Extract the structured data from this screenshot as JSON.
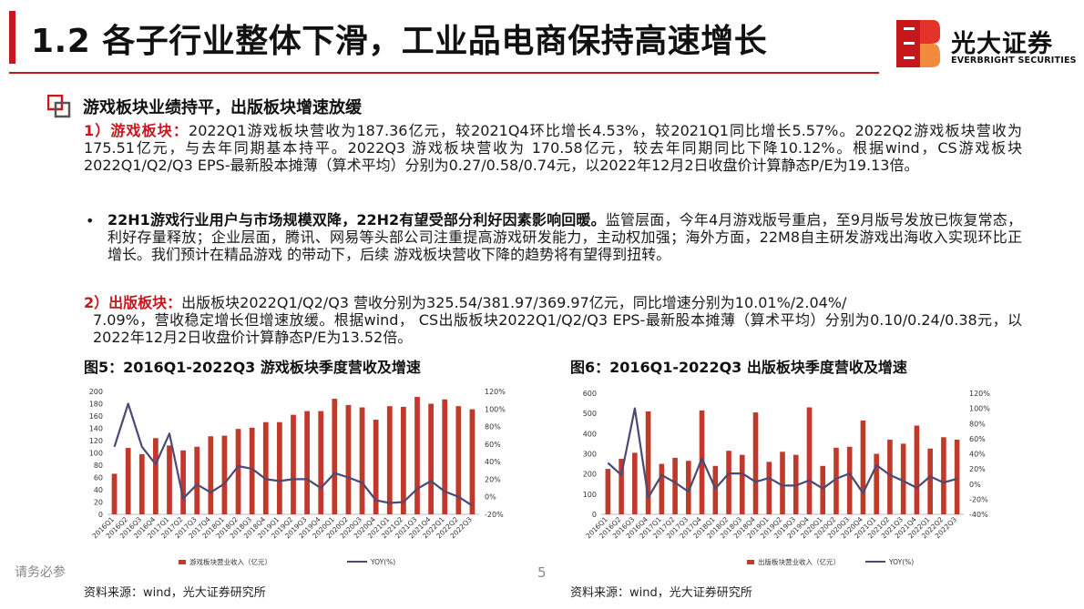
{
  "header": {
    "title": "1.2 各子行业整体下滑，工业品电商保持高速增长",
    "brand_cn": "光大证券",
    "brand_en": "EVERBRIGHT SECURITIES"
  },
  "section": {
    "title": "游戏板块业绩持平，出版板块增速放缓"
  },
  "paragraphs": {
    "p1_lead": "1）游戏板块：",
    "p1_body": "2022Q1游戏板块营收为187.36亿元，较2021Q4环比增长4.53%，较2021Q1同比增长5.57%。2022Q2游戏板块营收为175.51亿元，与去年同期基本持平。2022Q3 游戏板块营收为 170.58亿元，较去年同期同比下降10.12%。根据wind，CS游戏板块2022Q1/Q2/Q3 EPS-最新股本摊薄（算术平均）分别为0.27/0.58/0.74元，以2022年12月2日收盘价计算静态P/E为19.13倍。",
    "bullet_mark": "•",
    "p2_lead": "22H1游戏行业用户与市场规模双降，22H2有望受部分利好因素影响回暖。",
    "p2_body": "监管层面，今年4月游戏版号重启，至9月版号发放已恢复常态，利好存量释放；企业层面，腾讯、网易等头部公司注重提高游戏研发能力，主动权加强；海外方面，22M8自主研发游戏出海收入实现环比正增长。我们预计在精品游戏 的带动下，后续 游戏板块营收下降的趋势将有望得到扭转。",
    "p3_lead": "2）出版板块：",
    "p3_body1": "出版板块2022Q1/Q2/Q3  营收分别为325.54/381.97/369.97亿元，同比增速分别为10.01%/2.04%/",
    "p3_body2": "7.09%，营收稳定增长但增速放缓。根据wind， CS出版板块2022Q1/Q2/Q3 EPS-最新股本摊薄（算术平均）分别为0.10/0.24/0.38元，以2022年12月2日收盘价计算静态P/E为13.52倍。"
  },
  "figures": {
    "fig5_title": "图5：2016Q1-2022Q3 游戏板块季度营收及增速",
    "fig6_title": "图6：2016Q1-2022Q3 出版板块季度营收及增速",
    "source5": "资料来源：wind，光大证券研究所",
    "source6": "资料来源：wind，光大证券研究所"
  },
  "footer": {
    "note": "请务必参",
    "page": "5"
  },
  "colors": {
    "brand_red": "#c8161d",
    "bar_red": "#c0392b",
    "line_navy": "#4a4a75"
  },
  "chart_data": [
    {
      "type": "bar",
      "categories": [
        "2016Q1",
        "2016Q2",
        "2016Q3",
        "2016Q4",
        "2017Q1",
        "2017Q2",
        "2017Q3",
        "2017Q4",
        "2018Q1",
        "2018Q2",
        "2018Q3",
        "2018Q4",
        "2019Q1",
        "2019Q2",
        "2019Q3",
        "2019Q4",
        "2020Q1",
        "2020Q2",
        "2020Q3",
        "2020Q4",
        "2021Q1",
        "2021Q2",
        "2021Q3",
        "2021Q4",
        "2022Q1",
        "2022Q2",
        "2022Q3"
      ],
      "series": [
        {
          "name": "游戏板块营业收入（亿元）",
          "kind": "bar",
          "axis": "left",
          "values": [
            66,
            108,
            98,
            124,
            112,
            104,
            110,
            127,
            128,
            139,
            141,
            150,
            150,
            162,
            168,
            168,
            188,
            178,
            174,
            154,
            176,
            175,
            191,
            180,
            187,
            176,
            171
          ]
        },
        {
          "name": "YOY(%)",
          "kind": "line",
          "axis": "right",
          "values": [
            57,
            106,
            57,
            37,
            72,
            -2,
            14,
            5,
            15,
            35,
            32,
            20,
            18,
            20,
            20,
            10,
            27,
            22,
            16,
            -4,
            -7,
            -6,
            9,
            18,
            6,
            0,
            -10
          ]
        }
      ],
      "ylim_left": [
        0,
        200
      ],
      "yticks_left": [
        0,
        20,
        40,
        60,
        80,
        100,
        120,
        140,
        160,
        180,
        200
      ],
      "ylim_right": [
        -20,
        120
      ],
      "yticks_right": [
        "-20%",
        "0%",
        "20%",
        "40%",
        "60%",
        "80%",
        "100%",
        "120%"
      ],
      "legend": "bottom"
    },
    {
      "type": "bar",
      "categories": [
        "2016Q1",
        "2016Q2",
        "2016Q3",
        "2016Q4",
        "2017Q1",
        "2017Q2",
        "2017Q3",
        "2017Q4",
        "2018Q1",
        "2018Q2",
        "2018Q3",
        "2018Q4",
        "2019Q1",
        "2019Q2",
        "2019Q3",
        "2019Q4",
        "2020Q1",
        "2020Q2",
        "2020Q3",
        "2020Q4",
        "2021Q1",
        "2021Q2",
        "2021Q3",
        "2021Q4",
        "2022Q1",
        "2022Q2",
        "2022Q3"
      ],
      "series": [
        {
          "name": "出版板块营业收入（亿元）",
          "kind": "bar",
          "axis": "left",
          "values": [
            225,
            275,
            305,
            510,
            250,
            280,
            265,
            515,
            240,
            315,
            295,
            505,
            260,
            310,
            295,
            530,
            240,
            330,
            335,
            465,
            300,
            370,
            350,
            440,
            326,
            382,
            370
          ]
        },
        {
          "name": "YOY(%)",
          "kind": "line",
          "axis": "right",
          "values": [
            28,
            12,
            100,
            -18,
            12,
            2,
            -10,
            34,
            -6,
            14,
            14,
            3,
            8,
            -2,
            -2,
            5,
            -6,
            7,
            14,
            -12,
            25,
            12,
            4,
            -5,
            10,
            2,
            7
          ]
        }
      ],
      "ylim_left": [
        0,
        600
      ],
      "yticks_left": [
        0,
        100,
        200,
        300,
        400,
        500,
        600
      ],
      "ylim_right": [
        -40,
        120
      ],
      "yticks_right": [
        "-40%",
        "-20%",
        "0%",
        "20%",
        "40%",
        "60%",
        "80%",
        "100%",
        "120%"
      ],
      "legend": "bottom"
    }
  ]
}
